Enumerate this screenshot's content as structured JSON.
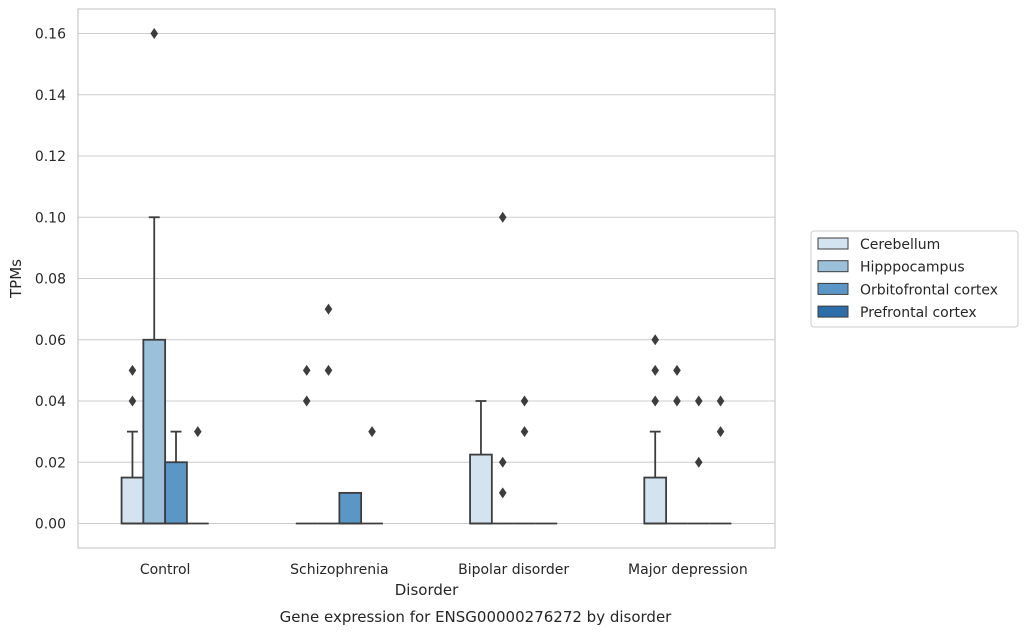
{
  "chart_data": {
    "type": "box",
    "xlabel": "Disorder",
    "ylabel": "TPMs",
    "caption": "Gene expression for ENSG00000276272 by disorder",
    "ylim": [
      -0.008,
      0.168
    ],
    "yticks": [
      0.0,
      0.02,
      0.04,
      0.06,
      0.08,
      0.1,
      0.12,
      0.14,
      0.16
    ],
    "ytick_labels": [
      "0.00",
      "0.02",
      "0.04",
      "0.06",
      "0.08",
      "0.10",
      "0.12",
      "0.14",
      "0.16"
    ],
    "categories": [
      "Control",
      "Schizophrenia",
      "Bipolar disorder",
      "Major depression"
    ],
    "grid": "horizontal",
    "legend_position": "right",
    "series": [
      {
        "name": "Cerebellum",
        "color": "#d3e3f0",
        "boxes": [
          {
            "q1": 0,
            "median": 0,
            "q3": 0.015,
            "whisker_low": 0,
            "whisker_high": 0.03,
            "outliers": [
              0.04,
              0.05
            ]
          },
          {
            "q1": 0,
            "median": 0,
            "q3": 0,
            "whisker_low": 0,
            "whisker_high": 0,
            "outliers": [
              0.04,
              0.05
            ]
          },
          {
            "q1": 0,
            "median": 0,
            "q3": 0.0225,
            "whisker_low": 0,
            "whisker_high": 0.04,
            "outliers": []
          },
          {
            "q1": 0,
            "median": 0,
            "q3": 0.015,
            "whisker_low": 0,
            "whisker_high": 0.03,
            "outliers": [
              0.04,
              0.05,
              0.06
            ]
          }
        ]
      },
      {
        "name": "Hipppocampus",
        "color": "#9ac0da",
        "boxes": [
          {
            "q1": 0,
            "median": 0,
            "q3": 0.06,
            "whisker_low": 0,
            "whisker_high": 0.1,
            "outliers": [
              0.16
            ]
          },
          {
            "q1": 0,
            "median": 0,
            "q3": 0,
            "whisker_low": 0,
            "whisker_high": 0,
            "outliers": [
              0.05,
              0.07
            ]
          },
          {
            "q1": 0,
            "median": 0,
            "q3": 0,
            "whisker_low": 0,
            "whisker_high": 0,
            "outliers": [
              0.01,
              0.02,
              0.1
            ]
          },
          {
            "q1": 0,
            "median": 0,
            "q3": 0,
            "whisker_low": 0,
            "whisker_high": 0,
            "outliers": [
              0.04,
              0.05
            ]
          }
        ]
      },
      {
        "name": "Orbitofrontal cortex",
        "color": "#5b97c6",
        "boxes": [
          {
            "q1": 0,
            "median": 0,
            "q3": 0.02,
            "whisker_low": 0,
            "whisker_high": 0.03,
            "outliers": []
          },
          {
            "q1": 0,
            "median": 0,
            "q3": 0.01,
            "whisker_low": 0,
            "whisker_high": 0.01,
            "outliers": []
          },
          {
            "q1": 0,
            "median": 0,
            "q3": 0,
            "whisker_low": 0,
            "whisker_high": 0,
            "outliers": [
              0.03,
              0.04
            ]
          },
          {
            "q1": 0,
            "median": 0,
            "q3": 0,
            "whisker_low": 0,
            "whisker_high": 0,
            "outliers": [
              0.02,
              0.04
            ]
          }
        ]
      },
      {
        "name": "Prefrontal cortex",
        "color": "#2b6ea9",
        "boxes": [
          {
            "q1": 0,
            "median": 0,
            "q3": 0,
            "whisker_low": 0,
            "whisker_high": 0,
            "outliers": [
              0.03
            ]
          },
          {
            "q1": 0,
            "median": 0,
            "q3": 0,
            "whisker_low": 0,
            "whisker_high": 0,
            "outliers": [
              0.03
            ]
          },
          {
            "q1": 0,
            "median": 0,
            "q3": 0,
            "whisker_low": 0,
            "whisker_high": 0,
            "outliers": []
          },
          {
            "q1": 0,
            "median": 0,
            "q3": 0,
            "whisker_low": 0,
            "whisker_high": 0,
            "outliers": [
              0.03,
              0.04
            ]
          }
        ]
      }
    ]
  }
}
